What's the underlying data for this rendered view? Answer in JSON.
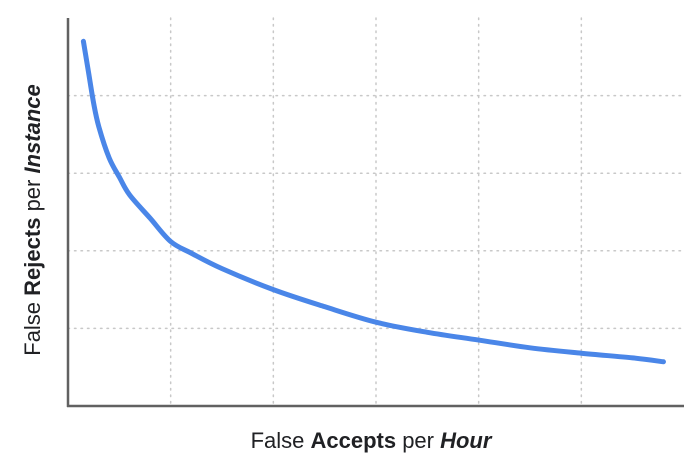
{
  "chart_data": {
    "type": "line",
    "title": "",
    "xlabel": {
      "parts": [
        {
          "text": "False ",
          "style": "normal"
        },
        {
          "text": "Accepts",
          "style": "bold"
        },
        {
          "text": " per ",
          "style": "normal"
        },
        {
          "text": "Hour",
          "style": "bolditalic"
        }
      ]
    },
    "ylabel": {
      "parts": [
        {
          "text": "False ",
          "style": "normal"
        },
        {
          "text": "Rejects",
          "style": "bold"
        },
        {
          "text": " per ",
          "style": "normal"
        },
        {
          "text": "Instance",
          "style": "bolditalic"
        }
      ]
    },
    "xlim": [
      0,
      6
    ],
    "ylim": [
      0,
      5
    ],
    "grid": true,
    "grid_style": "dotted",
    "x_gridlines": [
      1,
      2,
      3,
      4,
      5
    ],
    "y_gridlines": [
      1,
      2,
      3,
      4
    ],
    "tick_labels": false,
    "series": [
      {
        "color": "#4a86e8",
        "x": [
          0.15,
          0.2,
          0.25,
          0.3,
          0.4,
          0.5,
          0.6,
          0.8,
          1.0,
          1.2,
          1.5,
          2.0,
          2.5,
          3.0,
          3.5,
          4.0,
          4.5,
          5.0,
          5.5,
          5.8
        ],
        "y": [
          4.7,
          4.3,
          3.9,
          3.6,
          3.2,
          2.95,
          2.72,
          2.42,
          2.12,
          1.97,
          1.77,
          1.5,
          1.28,
          1.08,
          0.95,
          0.85,
          0.75,
          0.68,
          0.62,
          0.57
        ]
      }
    ]
  }
}
